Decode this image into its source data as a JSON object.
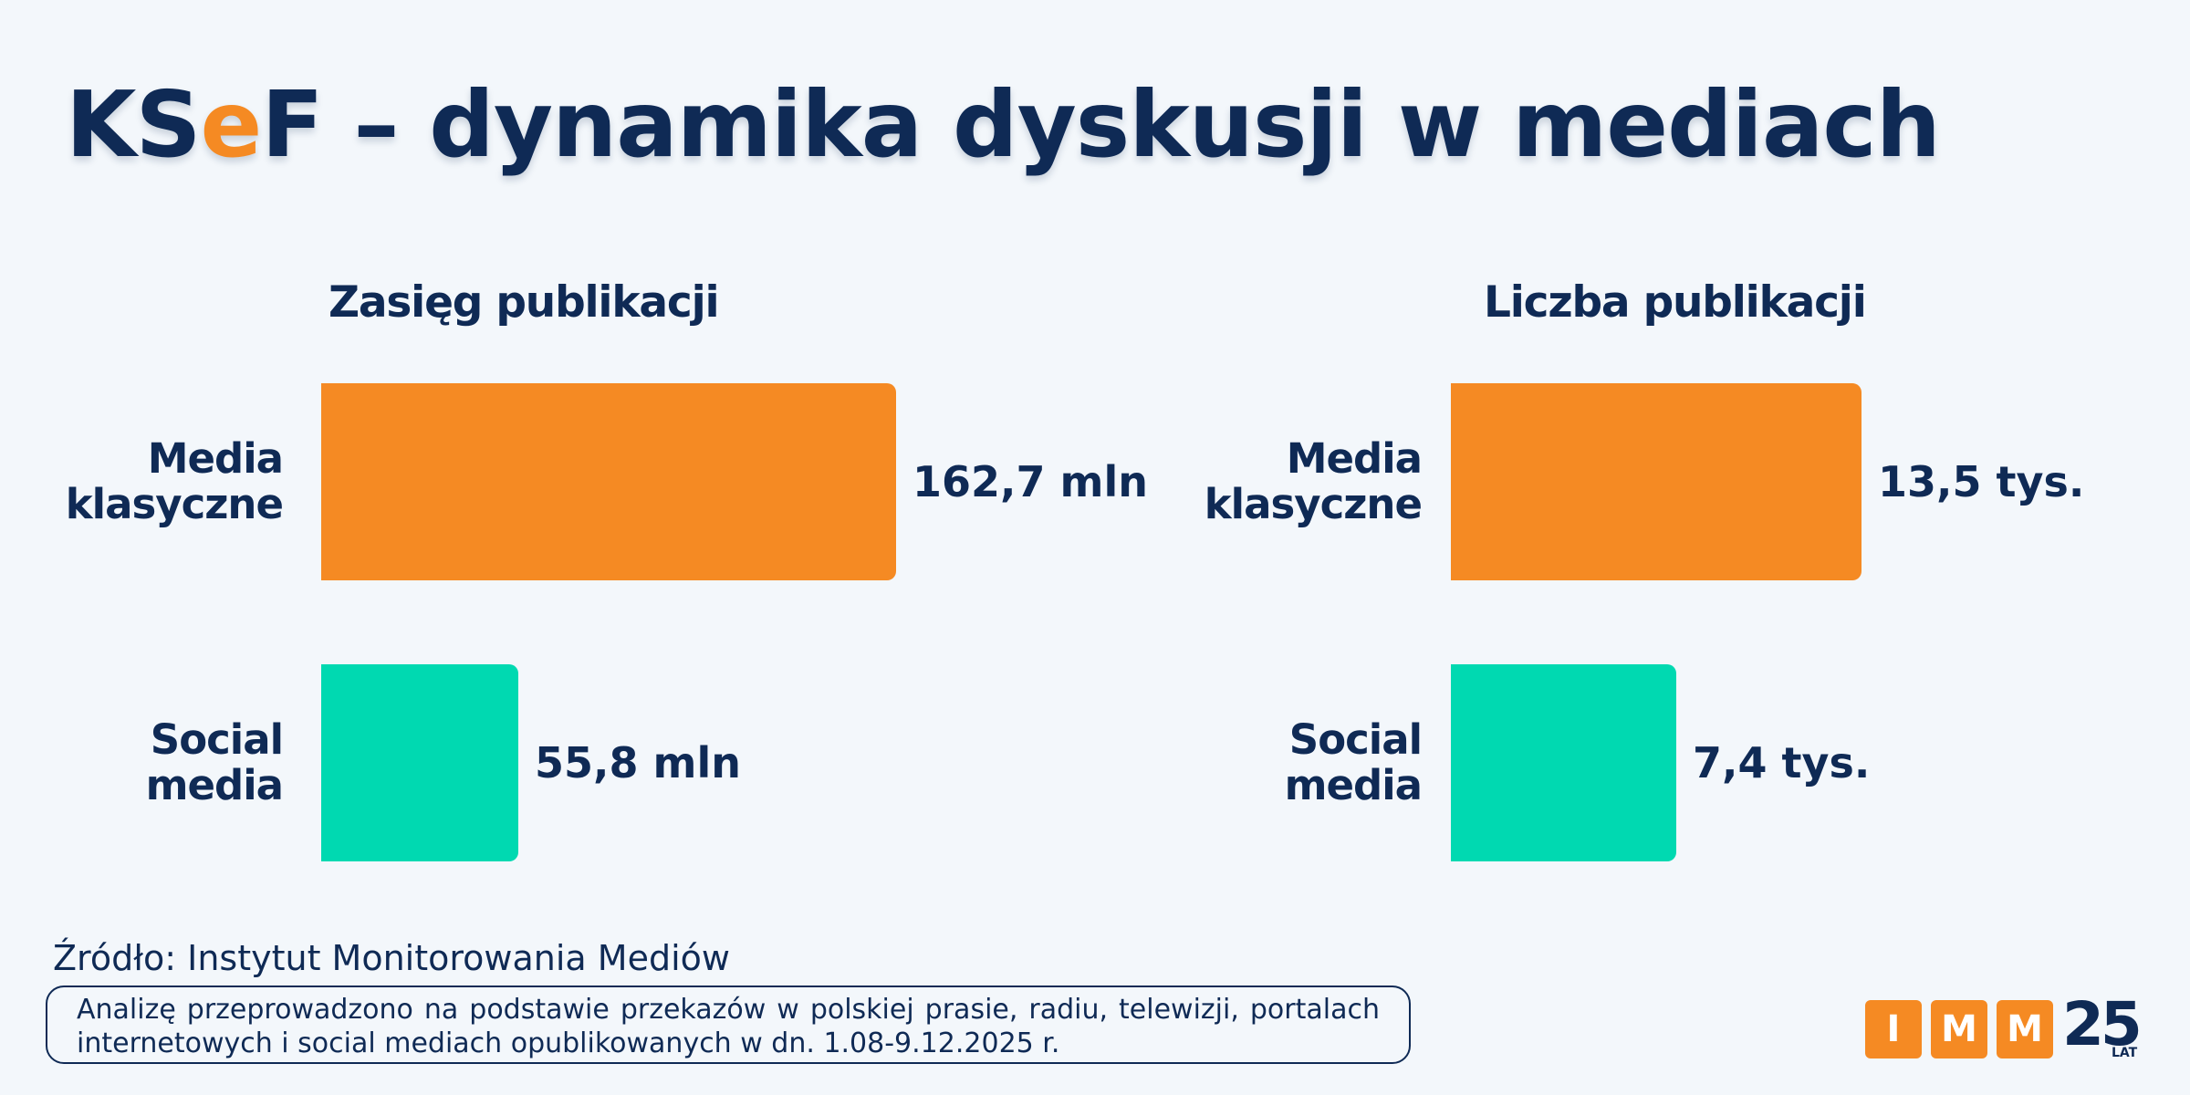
{
  "title": {
    "prefix_k_s": "KS",
    "accent_e": "e",
    "rest": "F – dynamika dyskusji w mediach"
  },
  "chart_data": [
    {
      "type": "bar",
      "orientation": "horizontal",
      "title": "Zasięg publikacji",
      "categories": [
        "Media\nklasyczne",
        "Social\nmedia"
      ],
      "values": [
        162.7,
        55.8
      ],
      "value_labels": [
        "162,7 mln",
        "55,8 mln"
      ],
      "colors": [
        "#f58a23",
        "#00d9b1"
      ],
      "unit": "mln",
      "xlim": [
        0,
        162.7
      ]
    },
    {
      "type": "bar",
      "orientation": "horizontal",
      "title": "Liczba publikacji",
      "categories": [
        "Media\nklasyczne",
        "Social\nmedia"
      ],
      "values": [
        13.5,
        7.4
      ],
      "value_labels": [
        "13,5 tys.",
        "7,4 tys."
      ],
      "colors": [
        "#f58a23",
        "#00d9b1"
      ],
      "unit": "tys.",
      "xlim": [
        0,
        13.5
      ]
    }
  ],
  "source": "Źródło: Instytut Monitorowania Mediów",
  "note": "Analizę przeprowadzono na podstawie przekazów w polskiej prasie, radiu, telewizji, portalach internetowych i social mediach opublikowanych w dn. 1.08-9.12.2025 r.",
  "logo": {
    "letters": [
      "I",
      "M",
      "M"
    ],
    "number": "25",
    "sub": "LAT"
  }
}
